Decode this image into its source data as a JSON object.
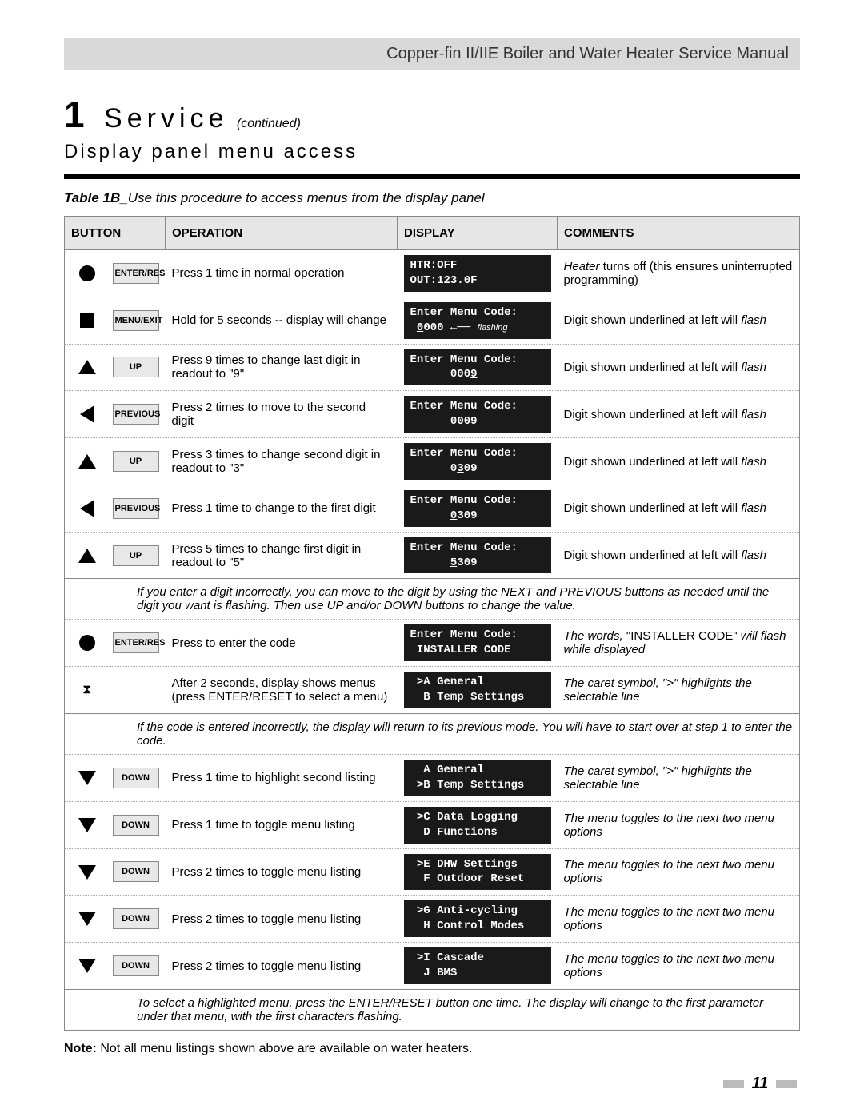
{
  "header": {
    "product": "Copper-fin II/IIE",
    "subtitle": "Boiler and Water Heater",
    "manual": "Service Manual"
  },
  "section": {
    "number": "1",
    "title": "Service",
    "continued": "(continued)",
    "subsection": "Display panel menu access"
  },
  "table_caption_bold": "Table 1B_",
  "table_caption_rest": "Use this procedure to access menus from the display panel",
  "columns": {
    "c1": "BUTTON",
    "c2": "OPERATION",
    "c3": "DISPLAY",
    "c4": "COMMENTS"
  },
  "rows": [
    {
      "icon": "circle",
      "btn": "ENTER/RES",
      "op": "Press 1 time in normal operation",
      "disp_html": "HTR:OFF\nOUT:123.0F",
      "com_html": "<i>Heater</i> turns off (this ensures uninterrupted programming)"
    },
    {
      "icon": "square",
      "btn": "MENU/EXIT",
      "op": "Hold for 5 seconds -- display will change",
      "disp_html": "Enter Menu Code:\n <span class='u'>0</span>000 ←── <span class='flash-note'>flashing</span>",
      "com_html": "Digit shown underlined at left will <i>flash</i>"
    },
    {
      "icon": "up",
      "btn": "UP",
      "op": "Press 9 times to change last digit in readout to \"9\"",
      "disp_html": "Enter Menu Code:\n      000<span class='u'>9</span>",
      "com_html": "Digit shown underlined at left will <i>flash</i>"
    },
    {
      "icon": "left",
      "btn": "PREVIOUS",
      "op": "Press 2 times to move to the second digit",
      "disp_html": "Enter Menu Code:\n      0<span class='u'>0</span>09",
      "com_html": "Digit shown underlined at left will <i>flash</i>"
    },
    {
      "icon": "up",
      "btn": "UP",
      "op": "Press 3 times to change second digit in readout to \"3\"",
      "disp_html": "Enter Menu Code:\n      0<span class='u'>3</span>09",
      "com_html": "Digit shown underlined at left will <i>flash</i>"
    },
    {
      "icon": "left",
      "btn": "PREVIOUS",
      "op": "Press 1 time to change to the first digit",
      "disp_html": "Enter Menu Code:\n      <span class='u'>0</span>309",
      "com_html": "Digit shown underlined at left will <i>flash</i>"
    },
    {
      "icon": "up",
      "btn": "UP",
      "op": "Press 5 times to change first digit in readout to \"5\"",
      "disp_html": "Enter Menu Code:\n      <span class='u'>5</span>309",
      "com_html": "Digit shown underlined at left will <i>flash</i>"
    },
    {
      "note": "If you enter a digit incorrectly, you can move to the digit by using the NEXT and PREVIOUS buttons as needed until the digit you want is flashing. Then use UP and/or DOWN buttons to change the value."
    },
    {
      "icon": "circle",
      "btn": "ENTER/RES",
      "op": "Press to enter the code",
      "disp_html": "Enter Menu Code:\n INSTALLER CODE",
      "com_html": "<i>The words,</i> \"INSTALLER CODE\" <i>will flash while displayed</i>"
    },
    {
      "icon": "hourglass",
      "btn": "",
      "op": "After 2 seconds, display shows menus (press ENTER/RESET to select a menu)",
      "disp_html": " >A General\n  B Temp Settings",
      "com_html": "<i>The caret symbol, \">\" highlights the selectable line</i>"
    },
    {
      "note": "If the code is entered incorrectly, the display will return to its previous mode. You will have to start over at step 1 to enter the code."
    },
    {
      "icon": "down",
      "btn": "DOWN",
      "op": "Press 1 time to highlight second listing",
      "disp_html": "  A General\n >B Temp Settings",
      "com_html": "<i>The caret symbol, \">\" highlights the selectable line</i>"
    },
    {
      "icon": "down",
      "btn": "DOWN",
      "op": "Press 1 time to toggle menu listing",
      "disp_html": " >C Data Logging\n  D Functions",
      "com_html": "<i>The menu toggles to the next two menu options</i>"
    },
    {
      "icon": "down",
      "btn": "DOWN",
      "op": "Press 2 times to toggle menu listing",
      "disp_html": " >E DHW Settings\n  F Outdoor Reset",
      "com_html": "<i>The menu toggles to the next two menu options</i>"
    },
    {
      "icon": "down",
      "btn": "DOWN",
      "op": "Press 2 times to toggle menu listing",
      "disp_html": " >G Anti-cycling\n  H Control Modes",
      "com_html": "<i>The menu toggles to the next two menu options</i>"
    },
    {
      "icon": "down",
      "btn": "DOWN",
      "op": "Press 2 times to toggle menu listing",
      "disp_html": " >I Cascade\n  J BMS",
      "com_html": "<i>The menu toggles to the next two menu options</i>"
    },
    {
      "note": "To select a highlighted menu, press the ENTER/RESET button one time. The display will change to the first parameter under that menu, with the first characters flashing."
    }
  ],
  "note_bold": "Note:",
  "note_rest": "Not all menu listings shown above are available on water heaters.",
  "page_number": "11"
}
